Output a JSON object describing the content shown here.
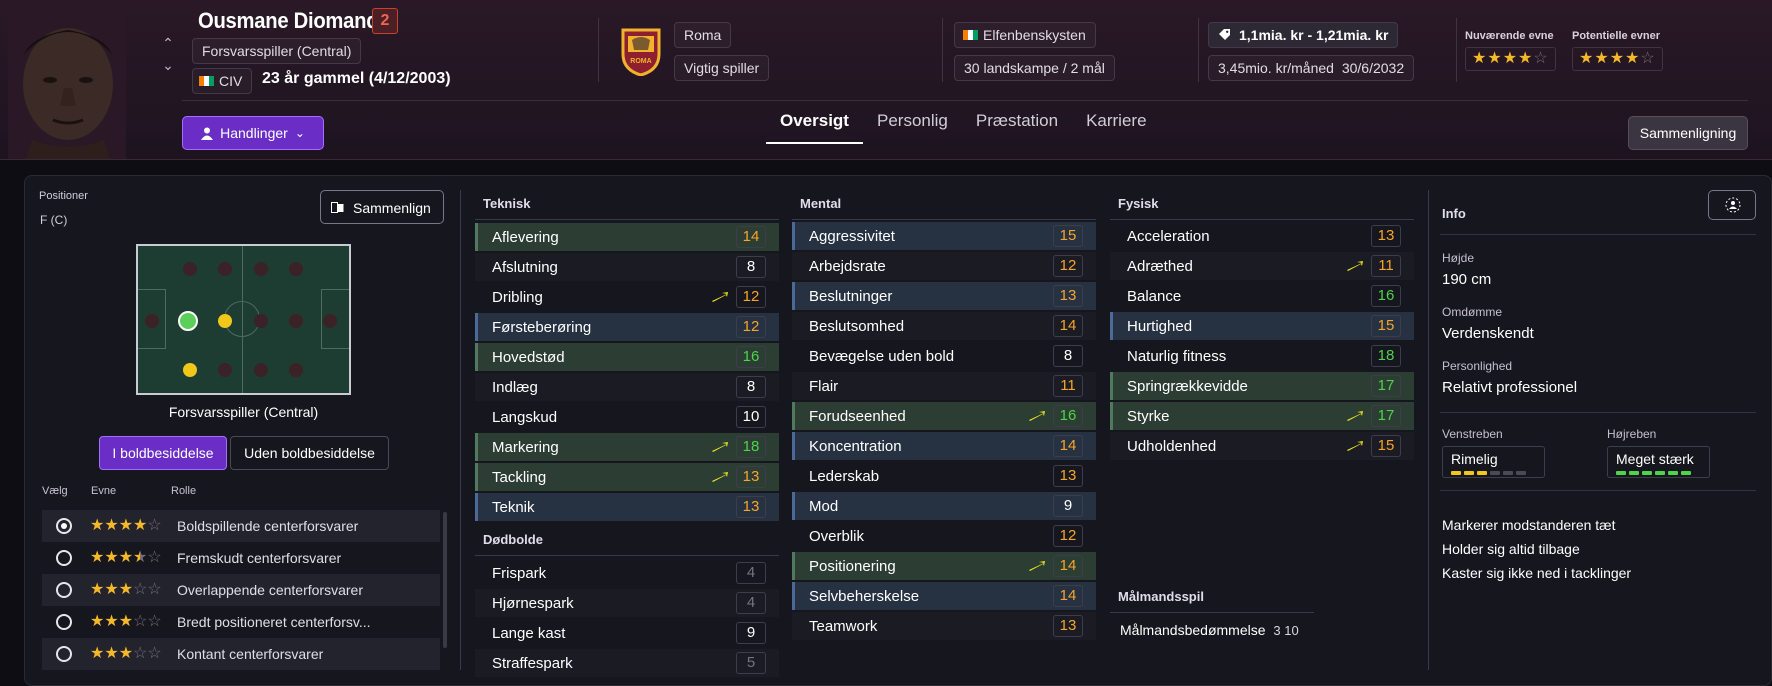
{
  "player": {
    "name": "Ousmane Diomande",
    "number": "2",
    "position": "Forsvarsspiller (Central)",
    "nation_code": "CIV",
    "age": "23 år gammel (4/12/2003)"
  },
  "actions_label": "Handlinger",
  "club": {
    "name": "Roma",
    "status": "Vigtig spiller",
    "badge_text": "ROMA"
  },
  "nation": {
    "name": "Elfenbenskysten",
    "caps": "30 landskampe / 2 mål"
  },
  "contract": {
    "value": "1,1mia. kr - 1,21mia. kr",
    "wage": "3,45mio. kr/måned",
    "expiry": "30/6/2032"
  },
  "abilities": {
    "current_label": "Nuværende evne",
    "potential_label": "Potentielle evner",
    "current_stars": 4,
    "potential_stars": 4
  },
  "tabs": [
    "Oversigt",
    "Personlig",
    "Præstation",
    "Karriere"
  ],
  "compare_label": "Sammenligning",
  "positions": {
    "label": "Positioner",
    "code": "F (C)",
    "compare_label": "Sammenlign",
    "role_name": "Forsvarsspiller (Central)"
  },
  "possession": {
    "with": "I boldbesiddelse",
    "without": "Uden boldbesiddelse"
  },
  "roles": {
    "headers": [
      "Vælg",
      "Evne",
      "Rolle"
    ],
    "items": [
      {
        "name": "Boldspillende centerforsvarer",
        "stars": 4,
        "selected": true
      },
      {
        "name": "Fremskudt centerforsvarer",
        "stars": 3.5,
        "selected": false
      },
      {
        "name": "Overlappende centerforsvarer",
        "stars": 3,
        "selected": false
      },
      {
        "name": "Bredt positioneret centerforsv...",
        "stars": 3,
        "selected": false
      },
      {
        "name": "Kontant centerforsvarer",
        "stars": 3,
        "selected": false
      }
    ]
  },
  "technical": {
    "title": "Teknisk",
    "items": [
      {
        "name": "Aflevering",
        "value": "14",
        "hl": "green",
        "arrow": false,
        "color": "orange"
      },
      {
        "name": "Afslutning",
        "value": "8",
        "hl": "",
        "arrow": false,
        "color": "white"
      },
      {
        "name": "Dribling",
        "value": "12",
        "hl": "",
        "arrow": true,
        "color": "orange"
      },
      {
        "name": "Førsteberøring",
        "value": "12",
        "hl": "blue",
        "arrow": false,
        "color": "orange"
      },
      {
        "name": "Hovedstød",
        "value": "16",
        "hl": "green",
        "arrow": false,
        "color": "green"
      },
      {
        "name": "Indlæg",
        "value": "8",
        "hl": "",
        "arrow": false,
        "color": "white"
      },
      {
        "name": "Langskud",
        "value": "10",
        "hl": "",
        "arrow": false,
        "color": "white"
      },
      {
        "name": "Markering",
        "value": "18",
        "hl": "green",
        "arrow": true,
        "color": "green"
      },
      {
        "name": "Tackling",
        "value": "13",
        "hl": "green",
        "arrow": true,
        "color": "orange"
      },
      {
        "name": "Teknik",
        "value": "13",
        "hl": "blue",
        "arrow": false,
        "color": "orange"
      }
    ]
  },
  "set_pieces": {
    "title": "Dødbolde",
    "items": [
      {
        "name": "Frispark",
        "value": "4",
        "hl": "",
        "arrow": false,
        "color": "grey"
      },
      {
        "name": "Hjørnespark",
        "value": "4",
        "hl": "",
        "arrow": false,
        "color": "grey"
      },
      {
        "name": "Lange kast",
        "value": "9",
        "hl": "",
        "arrow": false,
        "color": "white"
      },
      {
        "name": "Straffespark",
        "value": "5",
        "hl": "",
        "arrow": false,
        "color": "grey"
      }
    ]
  },
  "mental": {
    "title": "Mental",
    "items": [
      {
        "name": "Aggressivitet",
        "value": "15",
        "hl": "blue",
        "arrow": false,
        "color": "orange"
      },
      {
        "name": "Arbejdsrate",
        "value": "12",
        "hl": "",
        "arrow": false,
        "color": "orange"
      },
      {
        "name": "Beslutninger",
        "value": "13",
        "hl": "blue",
        "arrow": false,
        "color": "orange"
      },
      {
        "name": "Beslutsomhed",
        "value": "14",
        "hl": "",
        "arrow": false,
        "color": "orange"
      },
      {
        "name": "Bevægelse uden bold",
        "value": "8",
        "hl": "",
        "arrow": false,
        "color": "white"
      },
      {
        "name": "Flair",
        "value": "11",
        "hl": "",
        "arrow": false,
        "color": "orange"
      },
      {
        "name": "Forudseenhed",
        "value": "16",
        "hl": "green",
        "arrow": true,
        "color": "green"
      },
      {
        "name": "Koncentration",
        "value": "14",
        "hl": "blue",
        "arrow": false,
        "color": "orange"
      },
      {
        "name": "Lederskab",
        "value": "13",
        "hl": "",
        "arrow": false,
        "color": "orange"
      },
      {
        "name": "Mod",
        "value": "9",
        "hl": "blue",
        "arrow": false,
        "color": "white"
      },
      {
        "name": "Overblik",
        "value": "12",
        "hl": "",
        "arrow": false,
        "color": "orange"
      },
      {
        "name": "Positionering",
        "value": "14",
        "hl": "green",
        "arrow": true,
        "color": "orange"
      },
      {
        "name": "Selvbeherskelse",
        "value": "14",
        "hl": "blue",
        "arrow": false,
        "color": "orange"
      },
      {
        "name": "Teamwork",
        "value": "13",
        "hl": "",
        "arrow": false,
        "color": "orange"
      }
    ]
  },
  "physical": {
    "title": "Fysisk",
    "items": [
      {
        "name": "Acceleration",
        "value": "13",
        "hl": "",
        "arrow": false,
        "color": "orange"
      },
      {
        "name": "Adræthed",
        "value": "11",
        "hl": "",
        "arrow": true,
        "color": "orange"
      },
      {
        "name": "Balance",
        "value": "16",
        "hl": "",
        "arrow": false,
        "color": "green"
      },
      {
        "name": "Hurtighed",
        "value": "15",
        "hl": "blue",
        "arrow": false,
        "color": "orange"
      },
      {
        "name": "Naturlig fitness",
        "value": "18",
        "hl": "",
        "arrow": false,
        "color": "green"
      },
      {
        "name": "Springrækkevidde",
        "value": "17",
        "hl": "green",
        "arrow": false,
        "color": "green"
      },
      {
        "name": "Styrke",
        "value": "17",
        "hl": "green",
        "arrow": true,
        "color": "green"
      },
      {
        "name": "Udholdenhed",
        "value": "15",
        "hl": "",
        "arrow": true,
        "color": "orange"
      }
    ]
  },
  "goalkeeping": {
    "title": "Målmandsspil",
    "label": "Målmandsbedømmelse",
    "value": "3 10"
  },
  "info": {
    "title": "Info",
    "height_label": "Højde",
    "height": "190 cm",
    "reputation_label": "Omdømme",
    "reputation": "Verdenskendt",
    "personality_label": "Personlighed",
    "personality": "Relativt professionel",
    "left_foot_label": "Venstreben",
    "left_foot": "Rimelig",
    "left_foot_level": 3,
    "right_foot_label": "Højreben",
    "right_foot": "Meget stærk",
    "right_foot_level": 6,
    "traits": [
      "Markerer modstanderen tæt",
      "Holder sig altid tilbage",
      "Kaster sig ikke ned i tacklinger"
    ]
  }
}
